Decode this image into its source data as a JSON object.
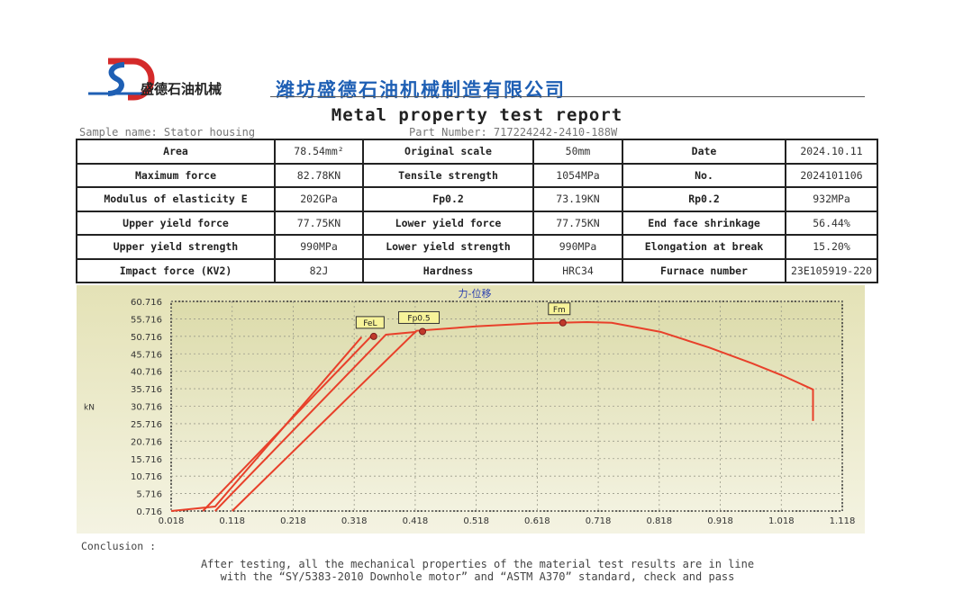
{
  "header": {
    "logo_text": "盛德石油机械",
    "company_name": "潍坊盛德石油机械制造有限公司",
    "title": "Metal property test report",
    "sample_name": "Sample name: Stator housing",
    "part_number": "Part Number: 717224242-2410-188W"
  },
  "table": {
    "rows": [
      [
        "Area",
        "78.54mm²",
        "Original scale",
        "50mm",
        "Date",
        "2024.10.11"
      ],
      [
        "Maximum force",
        "82.78KN",
        "Tensile strength",
        "1054MPa",
        "No.",
        "2024101106"
      ],
      [
        "Modulus of elasticity E",
        "202GPa",
        "Fp0.2",
        "73.19KN",
        "Rp0.2",
        "932MPa"
      ],
      [
        "Upper yield force",
        "77.75KN",
        "Lower yield force",
        "77.75KN",
        "End face shrinkage",
        "56.44%"
      ],
      [
        "Upper yield strength",
        "990MPa",
        "Lower yield strength",
        "990MPa",
        "Elongation at break",
        "15.20%"
      ],
      [
        "Impact force (KV2)",
        "82J",
        "Hardness",
        "HRC34",
        "Furnace number",
        "23E105919-220"
      ]
    ]
  },
  "chart_data": {
    "type": "line",
    "title": "力-位移",
    "ylabel": "kN",
    "xlim": [
      0.018,
      1.118
    ],
    "ylim": [
      0.716,
      60.716
    ],
    "xticks": [
      "0.018",
      "0.118",
      "0.218",
      "0.318",
      "0.418",
      "0.518",
      "0.618",
      "0.718",
      "0.818",
      "0.918",
      "1.018",
      "1.118"
    ],
    "yticks": [
      "0.716",
      "5.716",
      "10.716",
      "15.716",
      "20.716",
      "25.716",
      "30.716",
      "35.716",
      "40.716",
      "45.716",
      "50.716",
      "55.716",
      "60.716"
    ],
    "grid": true,
    "line_color": "#e8402a",
    "series": [
      {
        "x": [
          0.018,
          0.09,
          0.33
        ],
        "y": [
          0.716,
          2.0,
          50.5
        ]
      },
      {
        "x": [
          0.07,
          0.35
        ],
        "y": [
          0.716,
          51.5
        ]
      },
      {
        "x": [
          0.09,
          0.37,
          0.42
        ],
        "y": [
          0.716,
          51.2,
          52.0
        ]
      },
      {
        "x": [
          0.118,
          0.42,
          0.52,
          0.62,
          0.7,
          0.74,
          0.82,
          0.9,
          0.97,
          1.02,
          1.07,
          1.07
        ],
        "y": [
          0.716,
          52.3,
          53.6,
          54.5,
          54.8,
          54.6,
          52.0,
          47.5,
          43.0,
          39.5,
          35.5,
          26.5
        ]
      }
    ],
    "markers": [
      {
        "label": "FeL",
        "x": 0.35,
        "y": 50.7
      },
      {
        "label": "Fp0.5",
        "x": 0.43,
        "y": 52.1
      },
      {
        "label": "Fm",
        "x": 0.66,
        "y": 54.6
      }
    ]
  },
  "conclusion": {
    "heading": "Conclusion :",
    "line1": "After testing, all the mechanical properties of the material test results are in line",
    "line2": "with the “SY/5383-2010 Downhole motor” and “ASTM A370”  standard, check and pass"
  }
}
